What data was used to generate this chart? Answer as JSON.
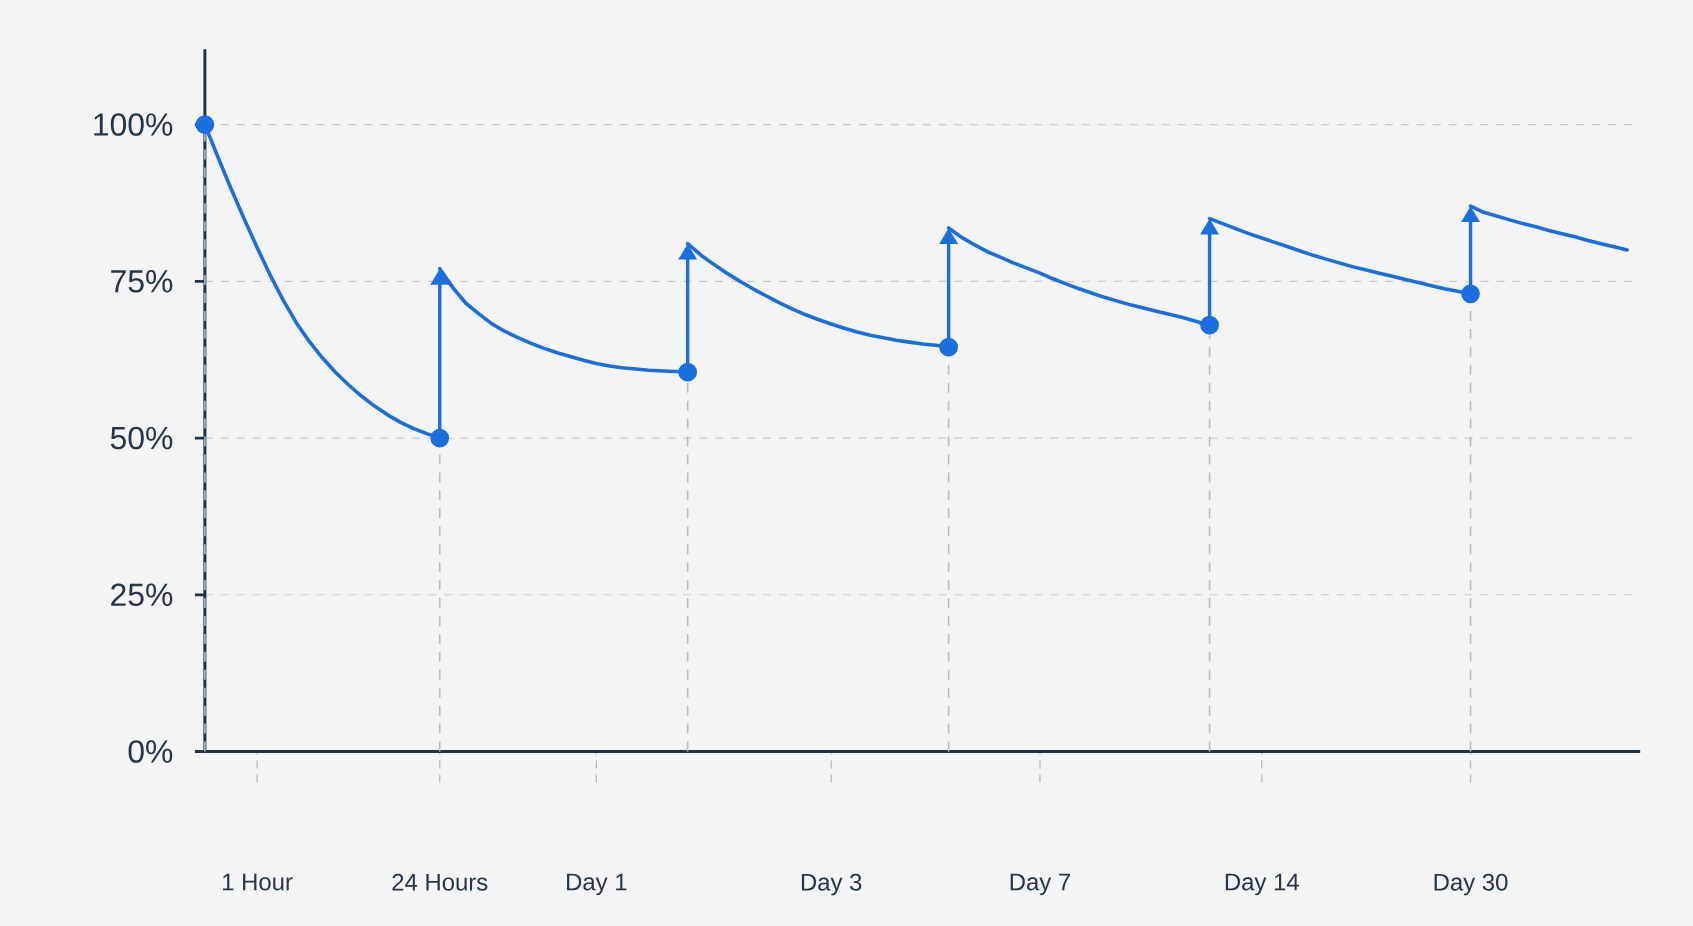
{
  "chart_data": {
    "type": "line",
    "categories": [
      null,
      null,
      null,
      null,
      "1 Hour",
      null,
      null,
      null,
      null,
      null,
      null,
      null,
      null,
      null,
      null,
      null,
      null,
      null,
      "24 Hours",
      null,
      null,
      null,
      null,
      null,
      null,
      null,
      null,
      null,
      null,
      null,
      "Day 1",
      null,
      null,
      null,
      null,
      null,
      null,
      null,
      null,
      null,
      null,
      null,
      null,
      null,
      null,
      null,
      null,
      null,
      "Day 3",
      null,
      null,
      null,
      null,
      null,
      null,
      null,
      null,
      null,
      null,
      null,
      null,
      null,
      null,
      null,
      "Day 7",
      null,
      null,
      null,
      null,
      null,
      null,
      null,
      null,
      null,
      null,
      null,
      null,
      null,
      null,
      null,
      null,
      "Day 14",
      null,
      null,
      null,
      null,
      null,
      null,
      null,
      null,
      null,
      null,
      null,
      null,
      null,
      null,
      null,
      "Day 30",
      null,
      null,
      null,
      null,
      null,
      null,
      null,
      null,
      null,
      null,
      null,
      null
    ],
    "ylim": [
      0,
      112
    ],
    "yticks": [
      {
        "value": 0,
        "label": "0%"
      },
      {
        "value": 25,
        "label": "25%"
      },
      {
        "value": 50,
        "label": "50%"
      },
      {
        "value": 75,
        "label": "75%"
      },
      {
        "value": 100,
        "label": "100%"
      }
    ],
    "grid": "y",
    "series": [
      {
        "type": "line",
        "color": "#1a6fe0",
        "values": [
          100,
          94.8,
          89.8,
          85,
          80.4,
          76,
          72,
          68.4,
          65.4,
          62.8,
          60.5,
          58.5,
          56.7,
          55.1,
          53.7,
          52.5,
          51.5,
          50.7,
          50,
          null,
          null,
          null,
          null,
          null,
          null,
          null,
          null,
          null,
          null,
          null,
          null,
          null,
          null,
          null,
          null,
          null,
          null,
          null,
          null,
          null,
          null,
          null,
          null,
          null,
          null,
          null,
          null,
          null,
          null,
          null,
          null,
          null,
          null,
          null,
          null,
          null,
          null,
          null,
          null,
          null,
          null,
          null,
          null,
          null,
          null,
          null,
          null,
          null,
          null,
          null,
          null,
          null,
          null,
          null,
          null,
          null,
          null,
          null,
          null,
          null,
          null,
          null,
          null,
          null,
          null,
          null,
          null,
          null,
          null,
          null,
          null,
          null,
          null,
          null,
          null,
          null,
          null,
          null,
          null,
          null,
          null,
          null,
          null,
          null,
          null,
          null,
          null,
          null,
          null,
          null
        ]
      },
      {
        "type": "line",
        "color": "#1a6fe0",
        "values": [
          null,
          null,
          null,
          null,
          null,
          null,
          null,
          null,
          null,
          null,
          null,
          null,
          null,
          null,
          null,
          null,
          null,
          null,
          77,
          74,
          71.5,
          69.8,
          68.2,
          67,
          66,
          65.1,
          64.3,
          63.6,
          63,
          62.4,
          61.9,
          61.5,
          61.2,
          61,
          60.8,
          60.7,
          60.6,
          60.5,
          null,
          null,
          null,
          null,
          null,
          null,
          null,
          null,
          null,
          null,
          null,
          null,
          null,
          null,
          null,
          null,
          null,
          null,
          null,
          null,
          null,
          null,
          null,
          null,
          null,
          null,
          null,
          null,
          null,
          null,
          null,
          null,
          null,
          null,
          null,
          null,
          null,
          null,
          null,
          null,
          null,
          null,
          null,
          null,
          null,
          null,
          null,
          null,
          null,
          null,
          null,
          null,
          null,
          null,
          null,
          null,
          null,
          null,
          null,
          null,
          null,
          null,
          null,
          null,
          null,
          null,
          null,
          null,
          null,
          null,
          null,
          null
        ]
      },
      {
        "type": "line",
        "color": "#1a6fe0",
        "values": [
          null,
          null,
          null,
          null,
          null,
          null,
          null,
          null,
          null,
          null,
          null,
          null,
          null,
          null,
          null,
          null,
          null,
          null,
          null,
          null,
          null,
          null,
          null,
          null,
          null,
          null,
          null,
          null,
          null,
          null,
          null,
          null,
          null,
          null,
          null,
          null,
          null,
          81,
          79.2,
          77.7,
          76.3,
          75,
          73.8,
          72.7,
          71.6,
          70.6,
          69.7,
          68.9,
          68.2,
          67.5,
          66.9,
          66.4,
          66,
          65.6,
          65.3,
          65,
          64.8,
          64.5,
          null,
          null,
          null,
          null,
          null,
          null,
          null,
          null,
          null,
          null,
          null,
          null,
          null,
          null,
          null,
          null,
          null,
          null,
          null,
          null,
          null,
          null,
          null,
          null,
          null,
          null,
          null,
          null,
          null,
          null,
          null,
          null,
          null,
          null,
          null,
          null,
          null,
          null,
          null,
          null,
          null,
          null,
          null,
          null,
          null,
          null,
          null,
          null,
          null,
          null,
          null,
          null
        ]
      },
      {
        "type": "line",
        "color": "#1a6fe0",
        "values": [
          null,
          null,
          null,
          null,
          null,
          null,
          null,
          null,
          null,
          null,
          null,
          null,
          null,
          null,
          null,
          null,
          null,
          null,
          null,
          null,
          null,
          null,
          null,
          null,
          null,
          null,
          null,
          null,
          null,
          null,
          null,
          null,
          null,
          null,
          null,
          null,
          null,
          null,
          null,
          null,
          null,
          null,
          null,
          null,
          null,
          null,
          null,
          null,
          null,
          null,
          null,
          null,
          null,
          null,
          null,
          null,
          null,
          83.5,
          82,
          80.8,
          79.7,
          78.8,
          77.9,
          77.1,
          76.3,
          75.4,
          74.6,
          73.8,
          73.1,
          72.4,
          71.8,
          71.2,
          70.7,
          70.2,
          69.7,
          69.2,
          68.6,
          68,
          null,
          null,
          null,
          null,
          null,
          null,
          null,
          null,
          null,
          null,
          null,
          null,
          null,
          null,
          null,
          null,
          null,
          null,
          null,
          null,
          null,
          null,
          null,
          null,
          null,
          null,
          null,
          null,
          null,
          null,
          null,
          null
        ]
      },
      {
        "type": "line",
        "color": "#1a6fe0",
        "values": [
          null,
          null,
          null,
          null,
          null,
          null,
          null,
          null,
          null,
          null,
          null,
          null,
          null,
          null,
          null,
          null,
          null,
          null,
          null,
          null,
          null,
          null,
          null,
          null,
          null,
          null,
          null,
          null,
          null,
          null,
          null,
          null,
          null,
          null,
          null,
          null,
          null,
          null,
          null,
          null,
          null,
          null,
          null,
          null,
          null,
          null,
          null,
          null,
          null,
          null,
          null,
          null,
          null,
          null,
          null,
          null,
          null,
          null,
          null,
          null,
          null,
          null,
          null,
          null,
          null,
          null,
          null,
          null,
          null,
          null,
          null,
          null,
          null,
          null,
          null,
          null,
          null,
          85,
          84.2,
          83.4,
          82.6,
          81.9,
          81.2,
          80.5,
          79.8,
          79.1,
          78.5,
          77.9,
          77.3,
          76.8,
          76.3,
          75.8,
          75.3,
          74.8,
          74.3,
          73.8,
          73.4,
          73,
          null,
          null,
          null,
          null,
          null,
          null,
          null,
          null,
          null,
          null,
          null,
          null
        ]
      },
      {
        "type": "line",
        "color": "#1a6fe0",
        "values": [
          null,
          null,
          null,
          null,
          null,
          null,
          null,
          null,
          null,
          null,
          null,
          null,
          null,
          null,
          null,
          null,
          null,
          null,
          null,
          null,
          null,
          null,
          null,
          null,
          null,
          null,
          null,
          null,
          null,
          null,
          null,
          null,
          null,
          null,
          null,
          null,
          null,
          null,
          null,
          null,
          null,
          null,
          null,
          null,
          null,
          null,
          null,
          null,
          null,
          null,
          null,
          null,
          null,
          null,
          null,
          null,
          null,
          null,
          null,
          null,
          null,
          null,
          null,
          null,
          null,
          null,
          null,
          null,
          null,
          null,
          null,
          null,
          null,
          null,
          null,
          null,
          null,
          null,
          null,
          null,
          null,
          null,
          null,
          null,
          null,
          null,
          null,
          null,
          null,
          null,
          null,
          null,
          null,
          null,
          null,
          null,
          null,
          87,
          86,
          85.4,
          84.8,
          84.2,
          83.7,
          83.1,
          82.6,
          82.1,
          81.5,
          81,
          80.5,
          80
        ]
      },
      {
        "type": "lollipop",
        "color": "#1a6fe0",
        "marker": "circle",
        "line_style": "dashed",
        "values": [
          100,
          null,
          null,
          null,
          null,
          null,
          null,
          null,
          null,
          null,
          null,
          null,
          null,
          null,
          null,
          null,
          null,
          null,
          50,
          null,
          null,
          null,
          null,
          null,
          null,
          null,
          null,
          null,
          null,
          null,
          null,
          null,
          null,
          null,
          null,
          null,
          null,
          60.5,
          null,
          null,
          null,
          null,
          null,
          null,
          null,
          null,
          null,
          null,
          null,
          null,
          null,
          null,
          null,
          null,
          null,
          null,
          null,
          64.5,
          null,
          null,
          null,
          null,
          null,
          null,
          null,
          null,
          null,
          null,
          null,
          null,
          null,
          null,
          null,
          null,
          null,
          null,
          null,
          68,
          null,
          null,
          null,
          null,
          null,
          null,
          null,
          null,
          null,
          null,
          null,
          null,
          null,
          null,
          null,
          null,
          null,
          null,
          null,
          73,
          null,
          null,
          null,
          null,
          null,
          null,
          null,
          null,
          null,
          null,
          null,
          null
        ]
      }
    ]
  }
}
